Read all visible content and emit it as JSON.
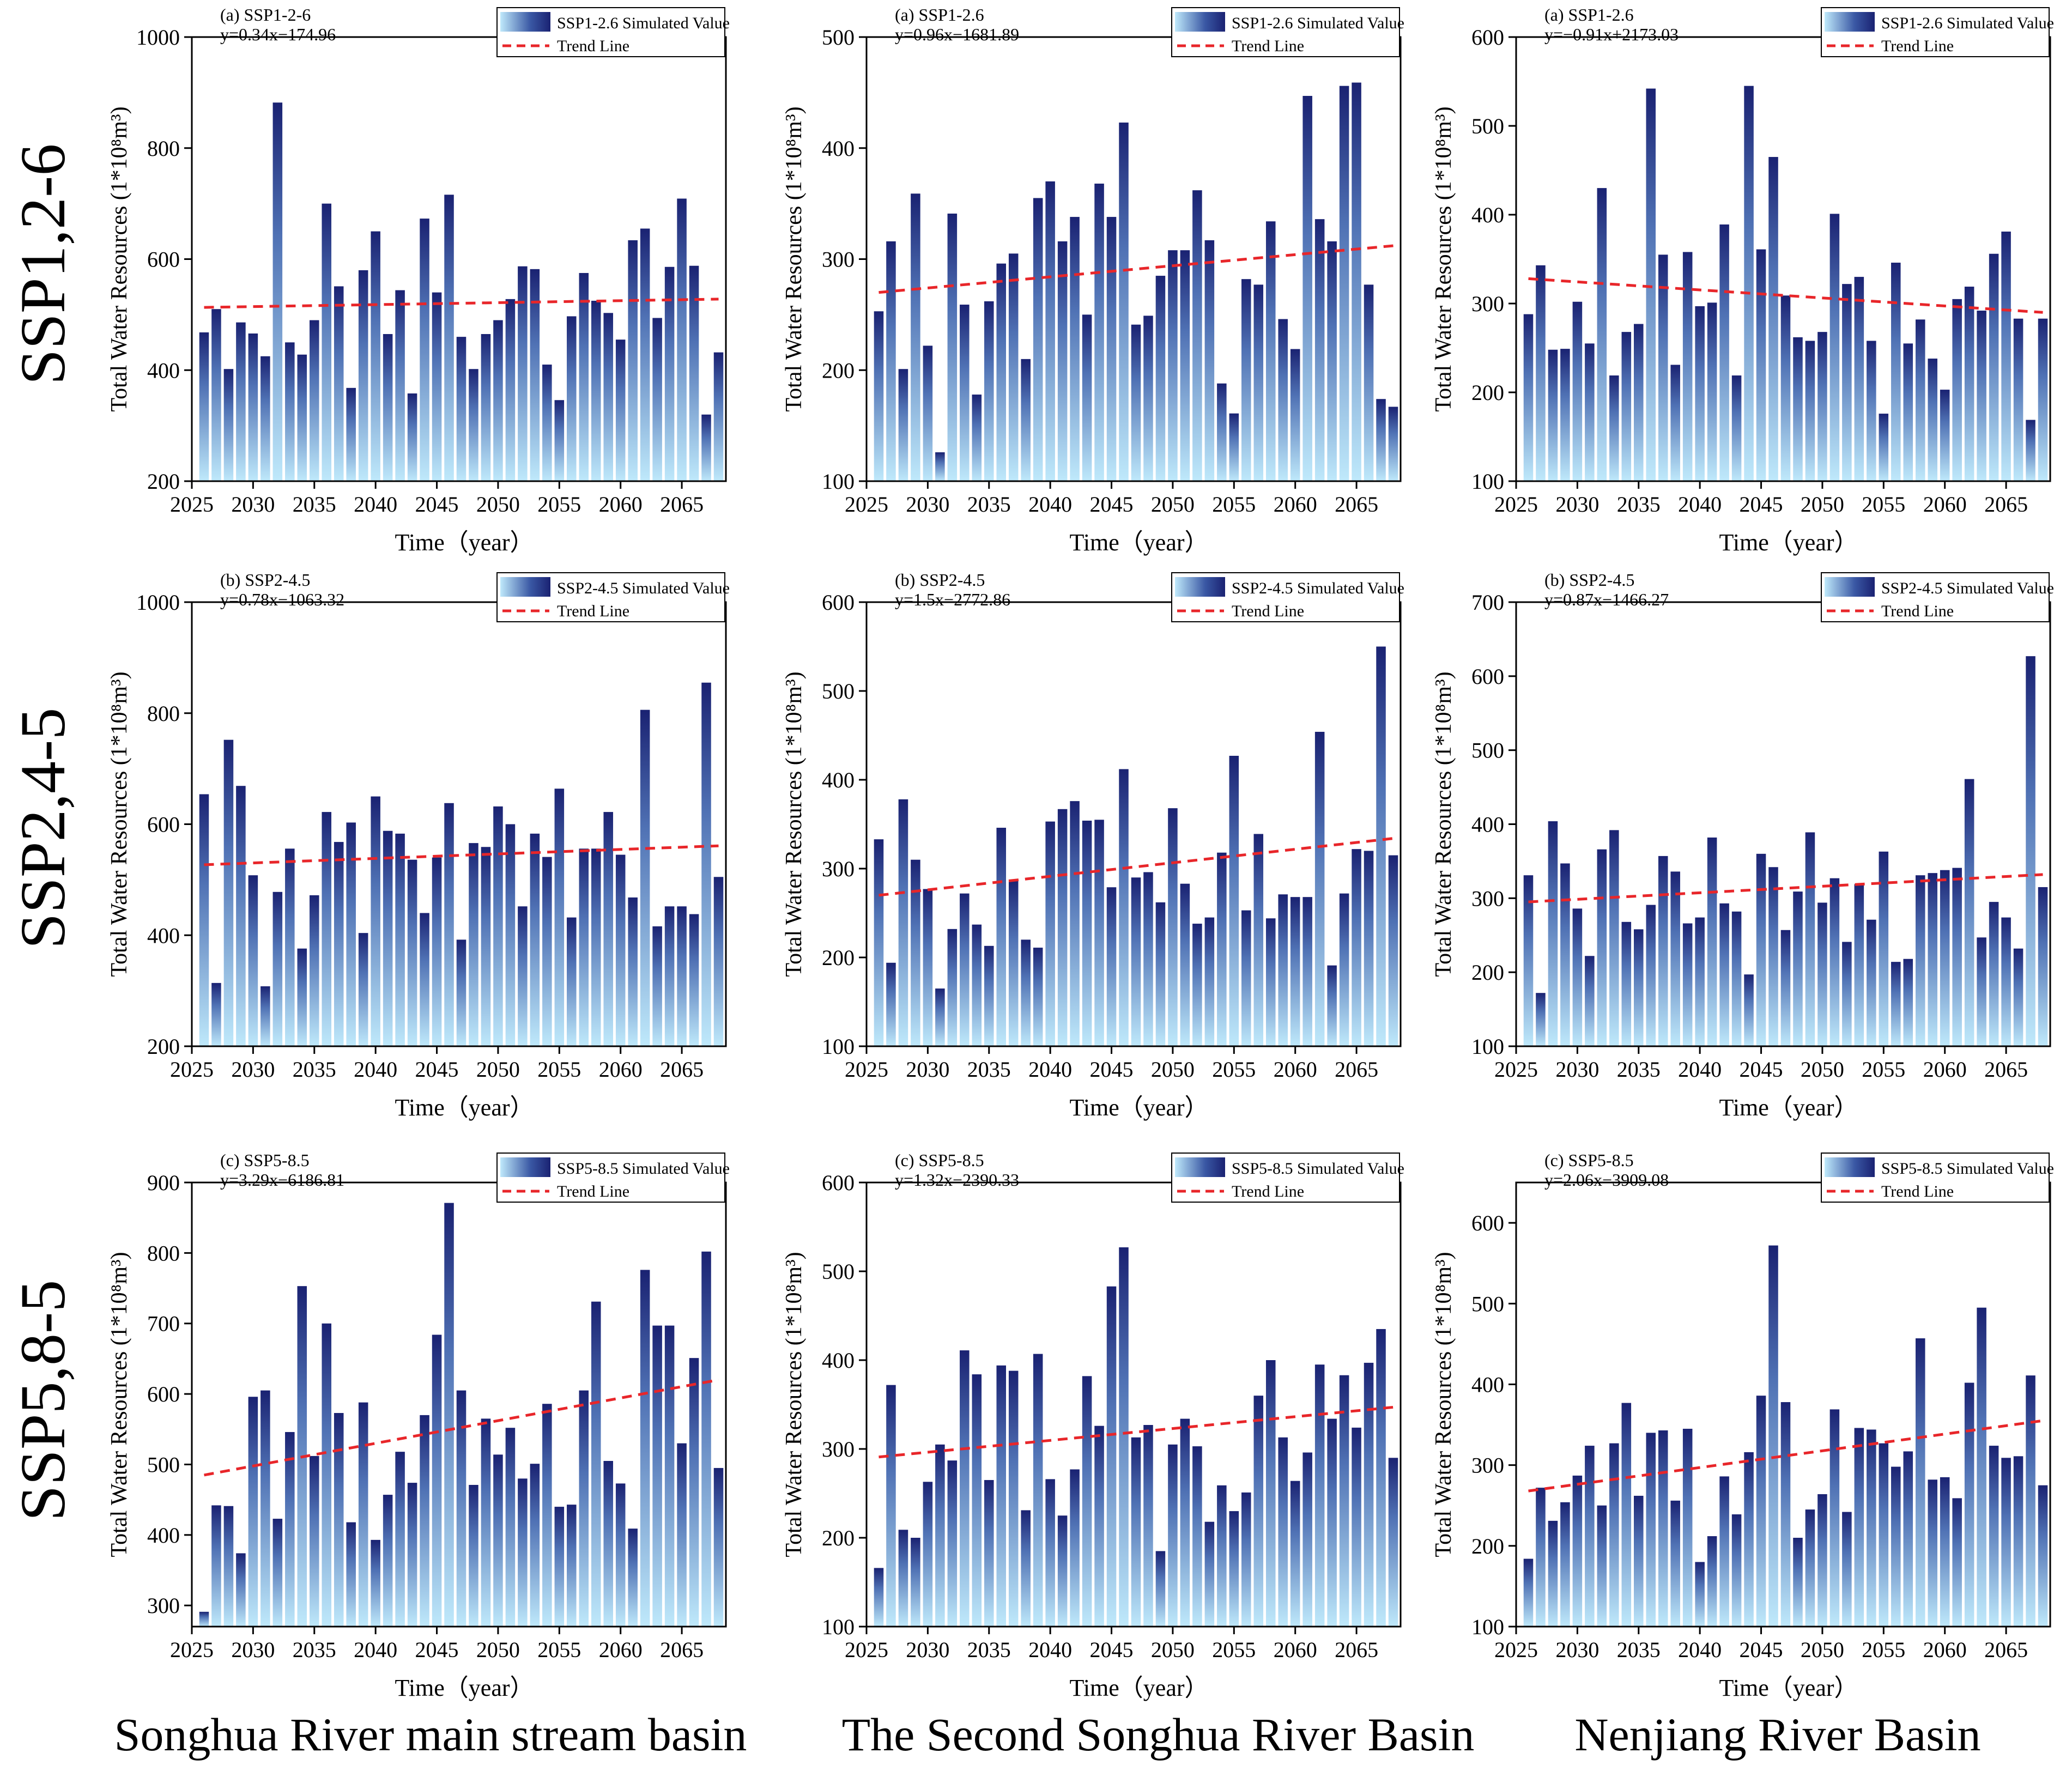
{
  "row_labels": [
    "SSP1,2-6",
    "SSP2,4-5",
    "SSP5,8-5"
  ],
  "column_labels": [
    "Songhua River main stream basin",
    "The Second Songhua River Basin",
    "Nenjiang River Basin"
  ],
  "common": {
    "xlabel": "Time（year）",
    "ylabel": "Total Water Resources (1*10⁸m³)",
    "trend_label": "Trend Line",
    "years": [
      2026,
      2027,
      2028,
      2029,
      2030,
      2031,
      2032,
      2033,
      2034,
      2035,
      2036,
      2037,
      2038,
      2039,
      2040,
      2041,
      2042,
      2043,
      2044,
      2045,
      2046,
      2047,
      2048,
      2049,
      2050,
      2051,
      2052,
      2053,
      2054,
      2055,
      2056,
      2057,
      2058,
      2059,
      2060,
      2061,
      2062,
      2063,
      2064,
      2065,
      2066,
      2067,
      2068
    ],
    "xticks": [
      2025,
      2030,
      2035,
      2040,
      2045,
      2050,
      2055,
      2060,
      2065
    ],
    "xlim": [
      2025,
      2068.6
    ],
    "colors": {
      "bar_top": "#1a2272",
      "bar_bottom": "#bfe9fb",
      "trend": "#e8262a",
      "axis": "#000000"
    }
  },
  "chart_data": [
    {
      "type": "bar",
      "row": 0,
      "col": 0,
      "panel_label": "(a) SSP1-2-6",
      "equation": "y=0.34x−174.96",
      "series_name": "SSP1-2.6 Simulated Value",
      "ylim": [
        200,
        1000
      ],
      "yticks": [
        200,
        400,
        600,
        800,
        1000
      ],
      "values": [
        468,
        510,
        402,
        486,
        466,
        425,
        882,
        450,
        428,
        490,
        700,
        551,
        368,
        580,
        650,
        465,
        544,
        358,
        673,
        540,
        716,
        460,
        402,
        465,
        490,
        528,
        587,
        582,
        410,
        346,
        497,
        575,
        525,
        503,
        455,
        634,
        655,
        494,
        586,
        709,
        588,
        320,
        432
      ],
      "trend": [
        513,
        528
      ]
    },
    {
      "type": "bar",
      "row": 0,
      "col": 1,
      "panel_label": "(a) SSP1-2.6",
      "equation": "y=0.96x−1681.89",
      "series_name": "SSP1-2.6 Simulated Value",
      "ylim": [
        100,
        500
      ],
      "yticks": [
        100,
        200,
        300,
        400,
        500
      ],
      "values": [
        253,
        316,
        201,
        359,
        222,
        126,
        341,
        259,
        178,
        262,
        296,
        305,
        210,
        355,
        370,
        316,
        338,
        250,
        368,
        338,
        423,
        241,
        249,
        285,
        308,
        308,
        362,
        317,
        188,
        161,
        282,
        277,
        334,
        246,
        219,
        447,
        336,
        316,
        456,
        459,
        277,
        174,
        167
      ],
      "trend": [
        270,
        312
      ]
    },
    {
      "type": "bar",
      "row": 0,
      "col": 2,
      "panel_label": "(a) SSP1-2.6",
      "equation": "y=−0.91x+2173.03",
      "series_name": "SSP1-2.6 Simulated Value",
      "ylim": [
        100,
        600
      ],
      "yticks": [
        100,
        200,
        300,
        400,
        500,
        600
      ],
      "values": [
        288,
        343,
        248,
        249,
        302,
        255,
        430,
        219,
        268,
        277,
        542,
        355,
        231,
        358,
        297,
        301,
        389,
        219,
        545,
        361,
        465,
        309,
        262,
        258,
        268,
        401,
        322,
        330,
        258,
        176,
        346,
        255,
        282,
        238,
        203,
        305,
        319,
        292,
        356,
        381,
        283,
        169,
        283
      ],
      "trend": [
        328,
        290
      ]
    },
    {
      "type": "bar",
      "row": 1,
      "col": 0,
      "panel_label": "(b) SSP2-4.5",
      "equation": "y=0.78x−1063.32",
      "series_name": "SSP2-4.5 Simulated Value",
      "ylim": [
        200,
        1000
      ],
      "yticks": [
        200,
        400,
        600,
        800,
        1000
      ],
      "values": [
        654,
        314,
        752,
        669,
        508,
        308,
        478,
        556,
        376,
        472,
        622,
        568,
        603,
        404,
        650,
        588,
        583,
        536,
        440,
        540,
        638,
        392,
        566,
        559,
        632,
        600,
        452,
        583,
        541,
        664,
        432,
        556,
        556,
        622,
        545,
        468,
        806,
        416,
        452,
        452,
        438,
        855,
        505
      ],
      "trend": [
        527,
        561
      ]
    },
    {
      "type": "bar",
      "row": 1,
      "col": 1,
      "panel_label": "(b) SSP2-4.5",
      "equation": "y=1.5x−2772.86",
      "series_name": "SSP2-4.5 Simulated Value",
      "ylim": [
        100,
        600
      ],
      "yticks": [
        100,
        200,
        300,
        400,
        500,
        600
      ],
      "values": [
        333,
        194,
        378,
        310,
        277,
        165,
        232,
        272,
        237,
        213,
        346,
        287,
        220,
        211,
        353,
        367,
        376,
        354,
        355,
        279,
        412,
        290,
        296,
        262,
        368,
        283,
        238,
        245,
        318,
        427,
        253,
        339,
        244,
        271,
        268,
        268,
        454,
        191,
        272,
        322,
        320,
        550,
        315
      ],
      "trend": [
        270,
        334
      ]
    },
    {
      "type": "bar",
      "row": 1,
      "col": 2,
      "panel_label": "(b) SSP2-4.5",
      "equation": "y=0.87x−1466.27",
      "series_name": "SSP2-4.5 Simulated Value",
      "ylim": [
        100,
        700
      ],
      "yticks": [
        100,
        200,
        300,
        400,
        500,
        600,
        700
      ],
      "values": [
        331,
        172,
        404,
        347,
        286,
        222,
        366,
        392,
        268,
        258,
        291,
        357,
        336,
        266,
        274,
        382,
        293,
        282,
        197,
        360,
        342,
        257,
        309,
        389,
        294,
        327,
        241,
        319,
        271,
        363,
        214,
        218,
        331,
        334,
        338,
        341,
        461,
        247,
        295,
        274,
        232,
        627,
        315
      ],
      "trend": [
        295,
        332
      ]
    },
    {
      "type": "bar",
      "row": 2,
      "col": 0,
      "panel_label": "(c) SSP5-8.5",
      "equation": "y=3.29x−6186.81",
      "series_name": "SSP5-8.5 Simulated Value",
      "ylim": [
        270,
        900
      ],
      "yticks": [
        300,
        400,
        500,
        600,
        700,
        800,
        900
      ],
      "values": [
        291,
        442,
        441,
        374,
        596,
        605,
        423,
        546,
        753,
        512,
        700,
        573,
        418,
        588,
        393,
        457,
        518,
        474,
        570,
        684,
        871,
        605,
        471,
        565,
        514,
        552,
        480,
        501,
        586,
        440,
        443,
        605,
        731,
        505,
        473,
        409,
        776,
        697,
        697,
        530,
        651,
        802,
        495
      ],
      "trend": [
        485,
        620
      ]
    },
    {
      "type": "bar",
      "row": 2,
      "col": 1,
      "panel_label": "(c) SSP5-8.5",
      "equation": "y=1.32x−2390.33",
      "series_name": "SSP5-8.5 Simulated Value",
      "ylim": [
        100,
        600
      ],
      "yticks": [
        100,
        200,
        300,
        400,
        500,
        600
      ],
      "values": [
        166,
        372,
        209,
        200,
        263,
        305,
        287,
        411,
        384,
        265,
        394,
        388,
        231,
        407,
        266,
        225,
        277,
        382,
        326,
        483,
        527,
        313,
        327,
        185,
        305,
        334,
        303,
        218,
        259,
        230,
        251,
        360,
        400,
        313,
        264,
        296,
        395,
        334,
        383,
        324,
        397,
        435,
        290
      ],
      "trend": [
        291,
        347
      ]
    },
    {
      "type": "bar",
      "row": 2,
      "col": 2,
      "panel_label": "(c) SSP5-8.5",
      "equation": "y=2.06x−3909.08",
      "series_name": "SSP5-8.5 Simulated Value",
      "ylim": [
        100,
        650
      ],
      "yticks": [
        100,
        200,
        300,
        400,
        500,
        600
      ],
      "values": [
        184,
        272,
        231,
        254,
        287,
        324,
        250,
        327,
        377,
        262,
        340,
        343,
        256,
        345,
        180,
        212,
        286,
        239,
        316,
        386,
        572,
        378,
        210,
        245,
        264,
        369,
        242,
        346,
        344,
        327,
        298,
        317,
        457,
        282,
        285,
        259,
        402,
        495,
        324,
        309,
        311,
        411,
        275
      ],
      "trend": [
        268,
        355
      ]
    }
  ]
}
